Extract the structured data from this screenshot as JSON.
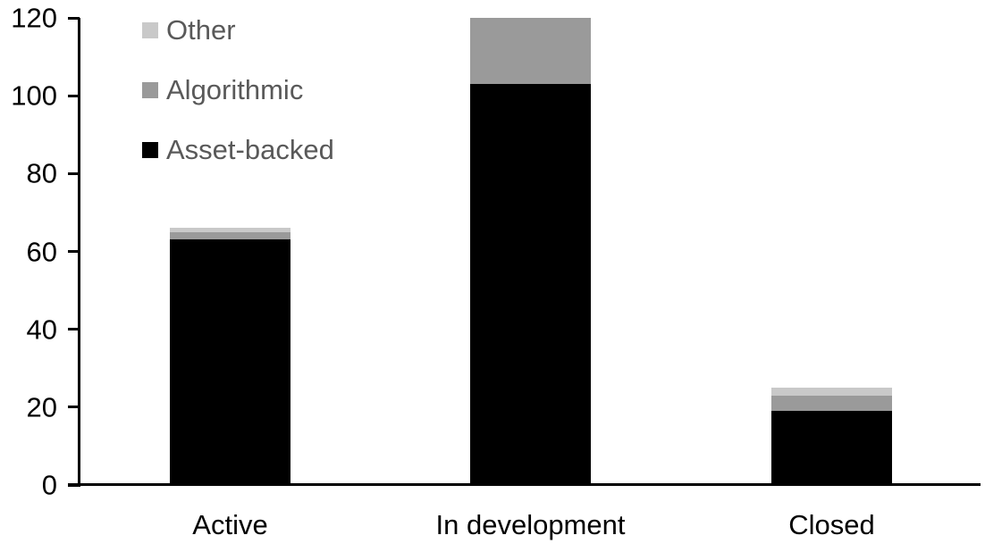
{
  "chart_data": {
    "type": "bar",
    "stacked": true,
    "title": "",
    "categories": [
      "Active",
      "In development",
      "Closed"
    ],
    "series": [
      {
        "name": "Asset-backed",
        "color": "#000000",
        "values": [
          63,
          103,
          19
        ]
      },
      {
        "name": "Algorithmic",
        "color": "#9a9a9a",
        "values": [
          2,
          17,
          4
        ]
      },
      {
        "name": "Other",
        "color": "#c9c9c9",
        "values": [
          1,
          0,
          2
        ]
      }
    ],
    "totals": [
      66,
      120,
      25
    ],
    "xlabel": "",
    "ylabel": "",
    "yaxis": {
      "min": 0,
      "max": 120,
      "tick_step": 20,
      "ticks": [
        0,
        20,
        40,
        60,
        80,
        100,
        120
      ]
    },
    "grid": false,
    "legend": {
      "position": "top-left",
      "display_order": [
        "Other",
        "Algorithmic",
        "Asset-backed"
      ],
      "text_color": "#595959"
    },
    "colors": {
      "axis": "#000000",
      "tick_label": "#000000",
      "category_label": "#000000",
      "background": "#ffffff"
    }
  }
}
